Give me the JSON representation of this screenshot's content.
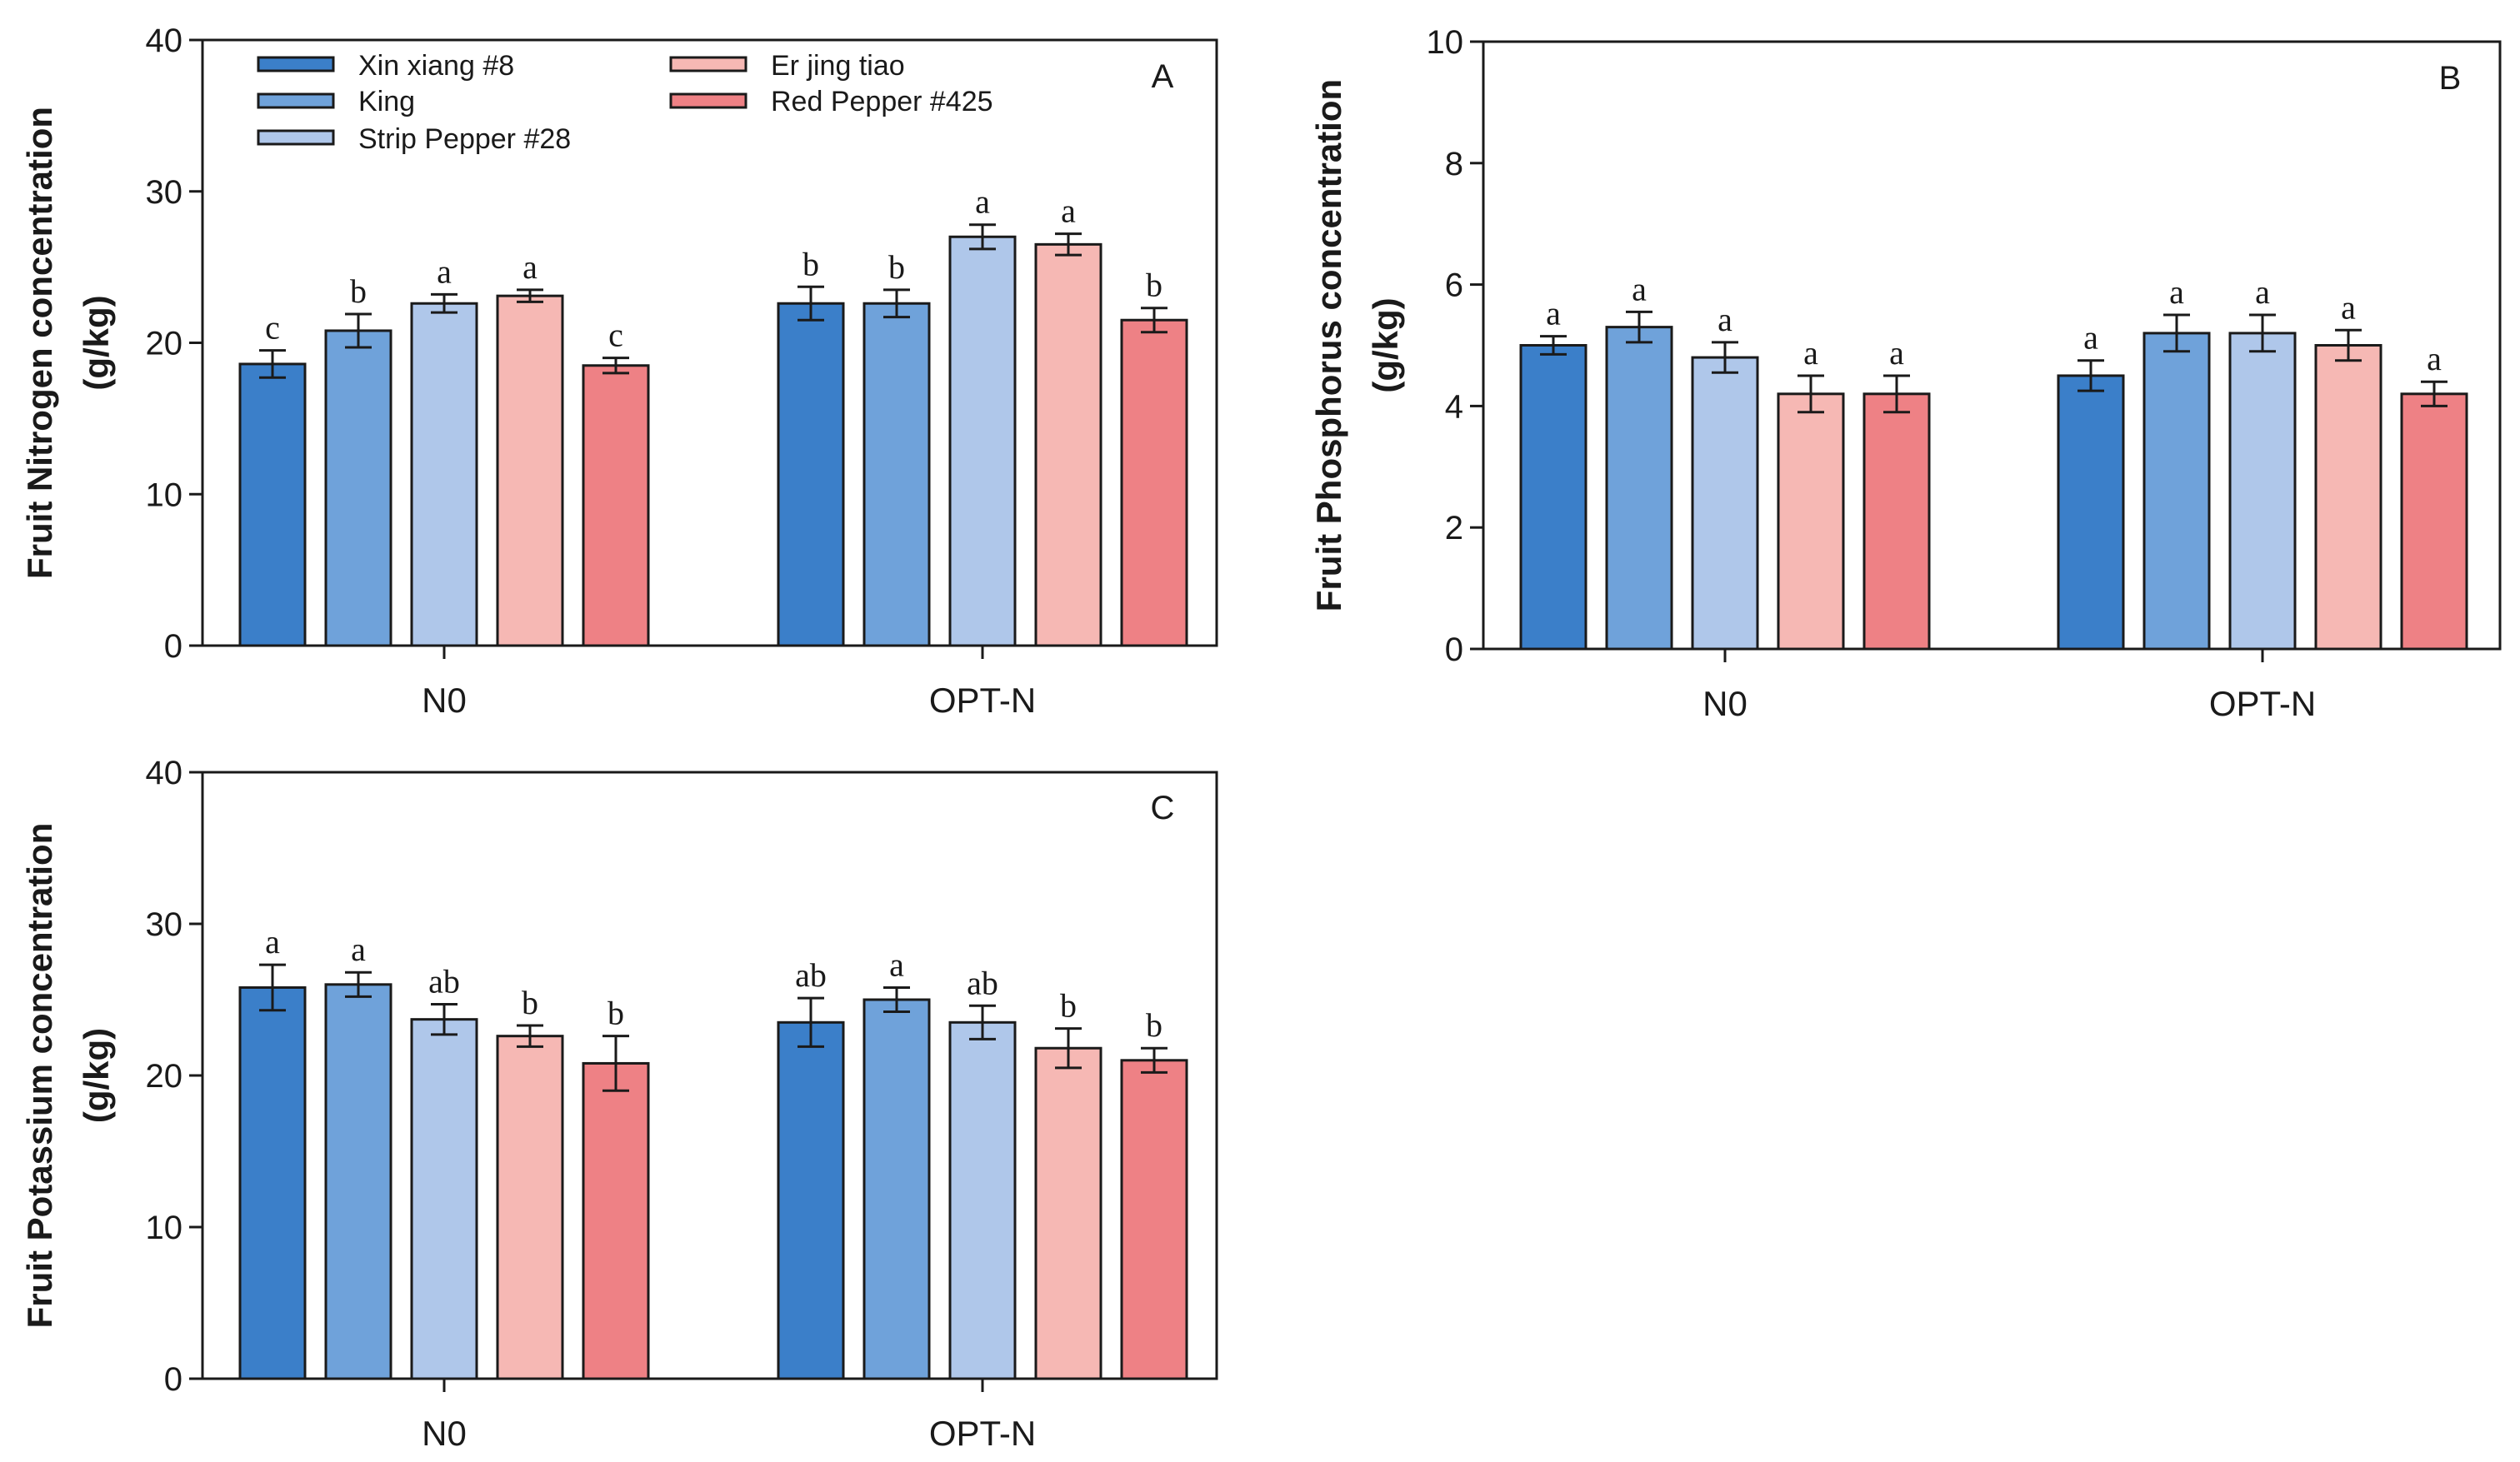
{
  "legend": [
    {
      "name": "Xin xiang #8",
      "color": "#3b7fc9"
    },
    {
      "name": "King",
      "color": "#6fa2da"
    },
    {
      "name": "Strip Pepper #28",
      "color": "#afc7ea"
    },
    {
      "name": "Er jing tiao",
      "color": "#f6b8b4"
    },
    {
      "name": "Red Pepper #425",
      "color": "#ee8185"
    }
  ],
  "chart_data": [
    {
      "type": "bar",
      "panel_label": "A",
      "ylabel_line1": "Fruit Nitrogen concentration",
      "ylabel_line2": "(g/kg)",
      "ylim": [
        0,
        40
      ],
      "yticks": [
        0,
        10,
        20,
        30,
        40
      ],
      "categories": [
        "N0",
        "OPT-N"
      ],
      "series": [
        {
          "name": "Xin xiang #8",
          "values": [
            18.6,
            22.6
          ],
          "errors": [
            0.9,
            1.1
          ],
          "letters": [
            "c",
            "b"
          ]
        },
        {
          "name": "King",
          "values": [
            20.8,
            22.6
          ],
          "errors": [
            1.1,
            0.9
          ],
          "letters": [
            "b",
            "b"
          ]
        },
        {
          "name": "Strip Pepper #28",
          "values": [
            22.6,
            27.0
          ],
          "errors": [
            0.6,
            0.8
          ],
          "letters": [
            "a",
            "a"
          ]
        },
        {
          "name": "Er jing tiao",
          "values": [
            23.1,
            26.5
          ],
          "errors": [
            0.4,
            0.7
          ],
          "letters": [
            "a",
            "a"
          ]
        },
        {
          "name": "Red Pepper #425",
          "values": [
            18.5,
            21.5
          ],
          "errors": [
            0.5,
            0.8
          ],
          "letters": [
            "c",
            "b"
          ]
        }
      ]
    },
    {
      "type": "bar",
      "panel_label": "B",
      "ylabel_line1": "Fruit Phosphorus concentration",
      "ylabel_line2": "(g/kg)",
      "ylim": [
        0,
        10
      ],
      "yticks": [
        0,
        2,
        4,
        6,
        8,
        10
      ],
      "categories": [
        "N0",
        "OPT-N"
      ],
      "series": [
        {
          "name": "Xin xiang #8",
          "values": [
            5.0,
            4.5
          ],
          "errors": [
            0.15,
            0.25
          ],
          "letters": [
            "a",
            "a"
          ]
        },
        {
          "name": "King",
          "values": [
            5.3,
            5.2
          ],
          "errors": [
            0.25,
            0.3
          ],
          "letters": [
            "a",
            "a"
          ]
        },
        {
          "name": "Strip Pepper #28",
          "values": [
            4.8,
            5.2
          ],
          "errors": [
            0.25,
            0.3
          ],
          "letters": [
            "a",
            "a"
          ]
        },
        {
          "name": "Er jing tiao",
          "values": [
            4.2,
            5.0
          ],
          "errors": [
            0.3,
            0.25
          ],
          "letters": [
            "a",
            "a"
          ]
        },
        {
          "name": "Red Pepper #425",
          "values": [
            4.2,
            4.2
          ],
          "errors": [
            0.3,
            0.2
          ],
          "letters": [
            "a",
            "a"
          ]
        }
      ]
    },
    {
      "type": "bar",
      "panel_label": "C",
      "ylabel_line1": "Fruit Potassium concentration",
      "ylabel_line2": "(g/kg)",
      "ylim": [
        0,
        40
      ],
      "yticks": [
        0,
        10,
        20,
        30,
        40
      ],
      "categories": [
        "N0",
        "OPT-N"
      ],
      "series": [
        {
          "name": "Xin xiang #8",
          "values": [
            25.8,
            23.5
          ],
          "errors": [
            1.5,
            1.6
          ],
          "letters": [
            "a",
            "ab"
          ]
        },
        {
          "name": "King",
          "values": [
            26.0,
            25.0
          ],
          "errors": [
            0.8,
            0.8
          ],
          "letters": [
            "a",
            "a"
          ]
        },
        {
          "name": "Strip Pepper #28",
          "values": [
            23.7,
            23.5
          ],
          "errors": [
            1.0,
            1.1
          ],
          "letters": [
            "ab",
            "ab"
          ]
        },
        {
          "name": "Er jing tiao",
          "values": [
            22.6,
            21.8
          ],
          "errors": [
            0.7,
            1.3
          ],
          "letters": [
            "b",
            "b"
          ]
        },
        {
          "name": "Red Pepper #425",
          "values": [
            20.8,
            21.0
          ],
          "errors": [
            1.8,
            0.8
          ],
          "letters": [
            "b",
            "b"
          ]
        }
      ]
    }
  ]
}
